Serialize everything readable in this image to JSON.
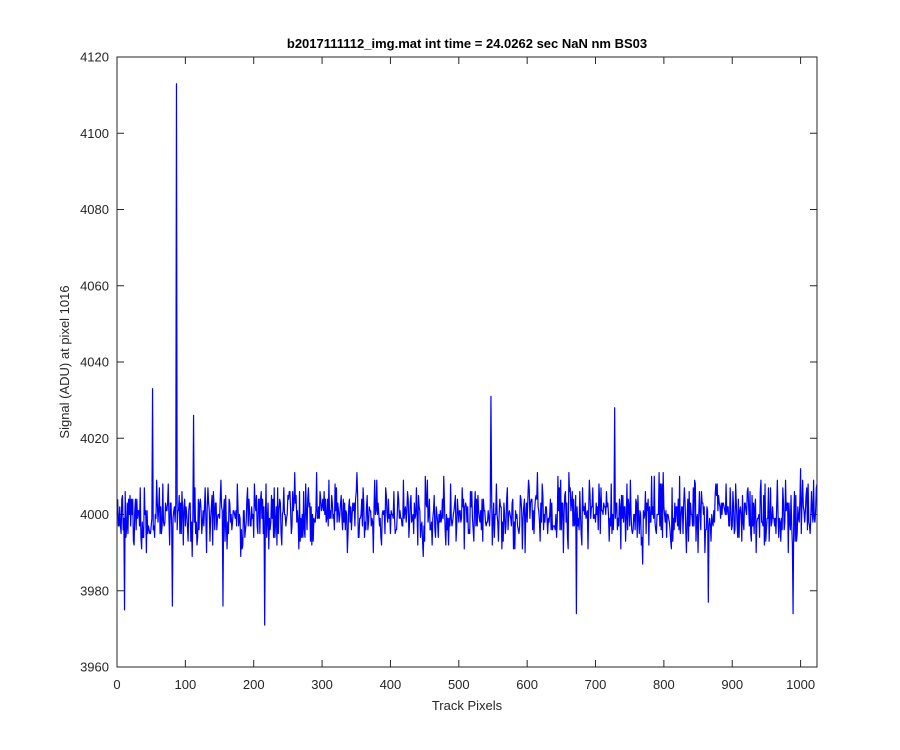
{
  "chart_data": {
    "type": "line",
    "title": "b2017111112_img.mat int time = 24.0262 sec  NaN nm BS03",
    "xlabel": "Track Pixels",
    "ylabel": "Signal (ADU) at pixel 1016",
    "xlim": [
      0,
      1024
    ],
    "ylim": [
      3960,
      4120
    ],
    "xticks": [
      0,
      100,
      200,
      300,
      400,
      500,
      600,
      700,
      800,
      900,
      1000
    ],
    "yticks": [
      3960,
      3980,
      4000,
      4020,
      4040,
      4060,
      4080,
      4100,
      4120
    ],
    "grid": false,
    "series": [
      {
        "color": "#0000ff",
        "x_start": 1,
        "x_step": 1,
        "n_points": 1024,
        "baseline": 4000,
        "typical_range": [
          3983,
          4013
        ],
        "spikes": [
          {
            "x": 11,
            "y": 3975
          },
          {
            "x": 52,
            "y": 4033
          },
          {
            "x": 81,
            "y": 3976
          },
          {
            "x": 87,
            "y": 4113
          },
          {
            "x": 112,
            "y": 4026
          },
          {
            "x": 155,
            "y": 3976
          },
          {
            "x": 216,
            "y": 3971
          },
          {
            "x": 547,
            "y": 4031
          },
          {
            "x": 672,
            "y": 3974
          },
          {
            "x": 728,
            "y": 4028
          },
          {
            "x": 865,
            "y": 3977
          },
          {
            "x": 989,
            "y": 3974
          }
        ]
      }
    ]
  }
}
